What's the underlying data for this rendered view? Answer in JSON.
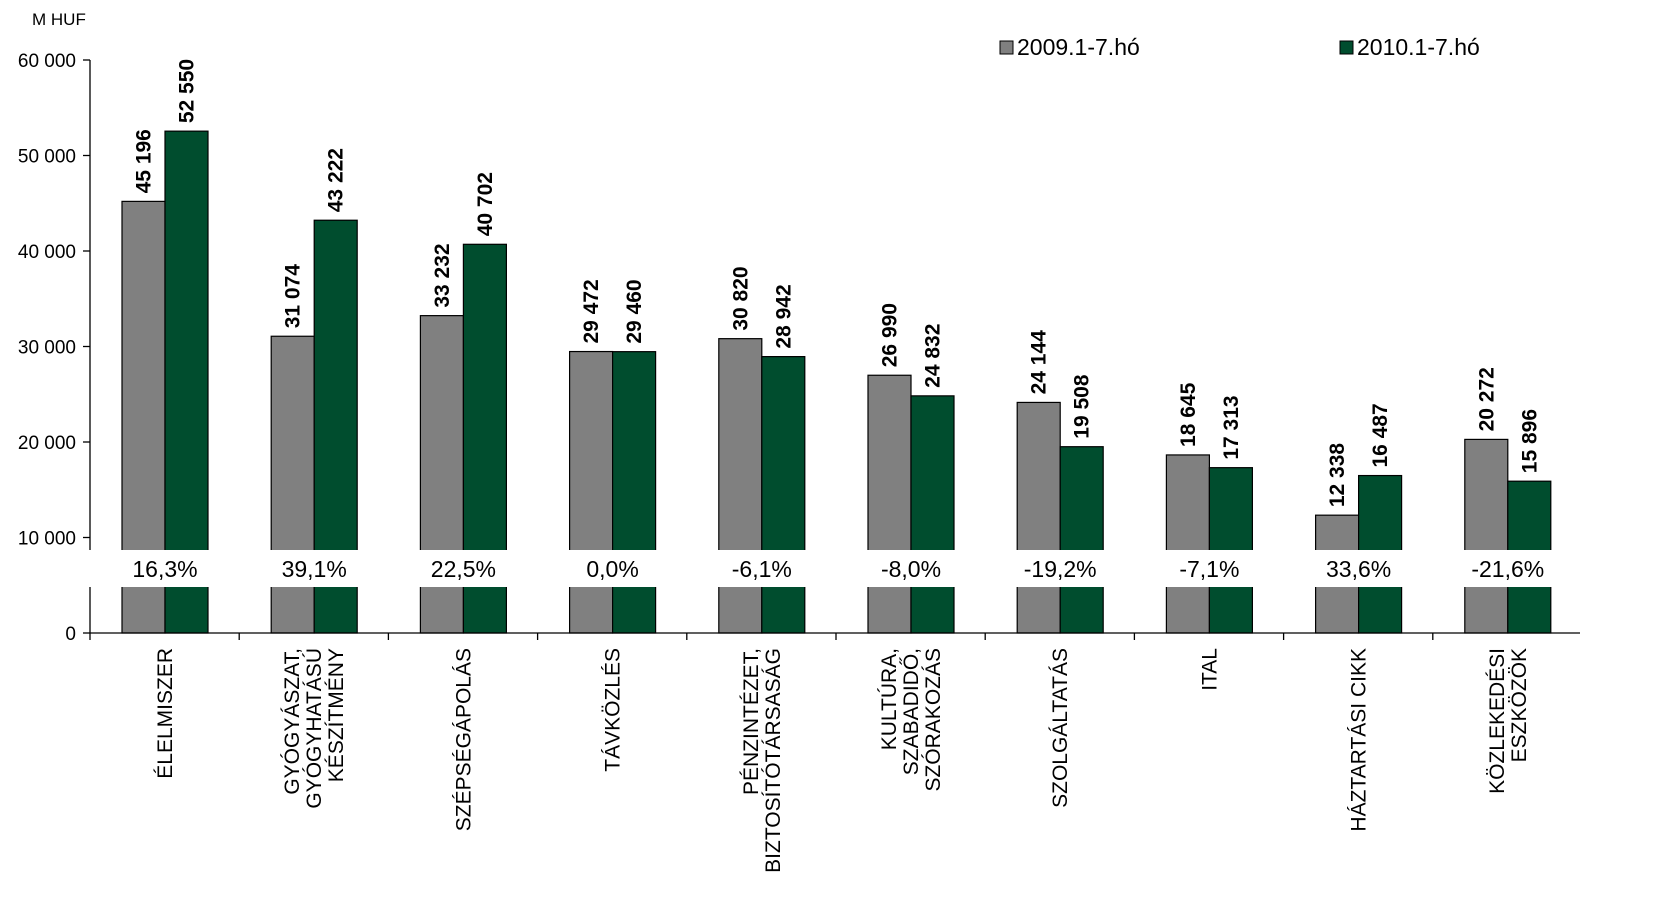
{
  "chart_data": {
    "type": "bar",
    "unit_label": "M HUF",
    "y_ticks": [
      {
        "value": 60000,
        "label": "60 000"
      },
      {
        "value": 50000,
        "label": "50 000"
      },
      {
        "value": 40000,
        "label": "40 000"
      },
      {
        "value": 30000,
        "label": "30 000"
      },
      {
        "value": 20000,
        "label": "20 000"
      },
      {
        "value": 10000,
        "label": "10 000"
      },
      {
        "value": 0,
        "label": "0"
      }
    ],
    "ylim": [
      0,
      60000
    ],
    "axis_break": true,
    "grid": false,
    "legend_position": "top-right",
    "categories": [
      [
        "ÉLELMISZER"
      ],
      [
        "GYÓGYÁSZAT,",
        "GYÓGYHATÁSÚ",
        "KÉSZÍTMÉNY"
      ],
      [
        "SZÉPSÉGÁPOLÁS"
      ],
      [
        "TÁVKÖZLÉS"
      ],
      [
        "PÉNZINTÉZET,",
        "BIZTOSÍTÓTÁRSASÁG"
      ],
      [
        "KULTÚRA,",
        "SZABADIDŐ,",
        "SZÓRAKOZÁS"
      ],
      [
        "SZOLGÁLTATÁS"
      ],
      [
        "ITAL"
      ],
      [
        "HÁZTARTÁSI CIKK"
      ],
      [
        "KÖZLEKEDÉSI",
        "ESZKÖZÖK"
      ]
    ],
    "series": [
      {
        "name": "2009.1-7.hó",
        "color": "#808080",
        "values": [
          45196,
          31074,
          33232,
          29472,
          30820,
          26990,
          24144,
          18645,
          12338,
          20272
        ],
        "labels": [
          "45 196",
          "31 074",
          "33 232",
          "29 472",
          "30 820",
          "26 990",
          "24 144",
          "18 645",
          "12 338",
          "20 272"
        ]
      },
      {
        "name": "2010.1-7.hó",
        "color": "#004d2e",
        "values": [
          52550,
          43222,
          40702,
          29460,
          28942,
          24832,
          19508,
          17313,
          16487,
          15896
        ],
        "labels": [
          "52 550",
          "43 222",
          "40 702",
          "29 460",
          "28 942",
          "24 832",
          "19 508",
          "17 313",
          "16 487",
          "15 896"
        ]
      }
    ],
    "change_labels": [
      "16,3%",
      "39,1%",
      "22,5%",
      "0,0%",
      "-6,1%",
      "-8,0%",
      "-19,2%",
      "-7,1%",
      "33,6%",
      "-21,6%"
    ]
  }
}
